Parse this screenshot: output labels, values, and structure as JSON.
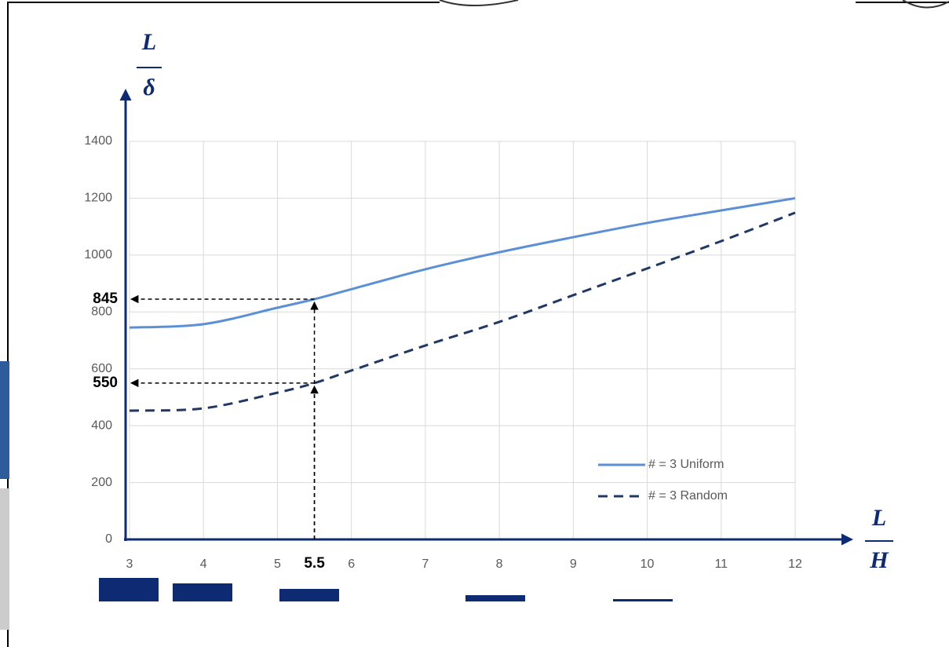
{
  "chart_data": {
    "type": "line",
    "ylabel": {
      "numerator": "L",
      "denominator": "δ"
    },
    "xlabel": {
      "numerator": "L",
      "denominator": "H"
    },
    "x": [
      3,
      4,
      5,
      5.5,
      6,
      7,
      8,
      9,
      10,
      11,
      12
    ],
    "series": [
      {
        "name": "# = 3 Uniform",
        "color": "#5b8fd6",
        "dash": false,
        "values": [
          745,
          757,
          815,
          845,
          880,
          950,
          1010,
          1063,
          1113,
          1157,
          1200
        ]
      },
      {
        "name": "# = 3 Random",
        "color": "#1f3864",
        "dash": true,
        "values": [
          453,
          461,
          516,
          550,
          594,
          682,
          765,
          859,
          953,
          1049,
          1149
        ]
      }
    ],
    "xlim": [
      3,
      12
    ],
    "xticks": [
      3,
      4,
      5,
      6,
      7,
      8,
      9,
      10,
      11,
      12
    ],
    "ylim": [
      0,
      1400
    ],
    "yticks": [
      0,
      200,
      400,
      600,
      800,
      1000,
      1200,
      1400
    ],
    "grid": true,
    "legend": "lower right",
    "annotations": [
      {
        "x": 5.5,
        "y": 845
      },
      {
        "x": 5.5,
        "y": 550
      }
    ]
  }
}
